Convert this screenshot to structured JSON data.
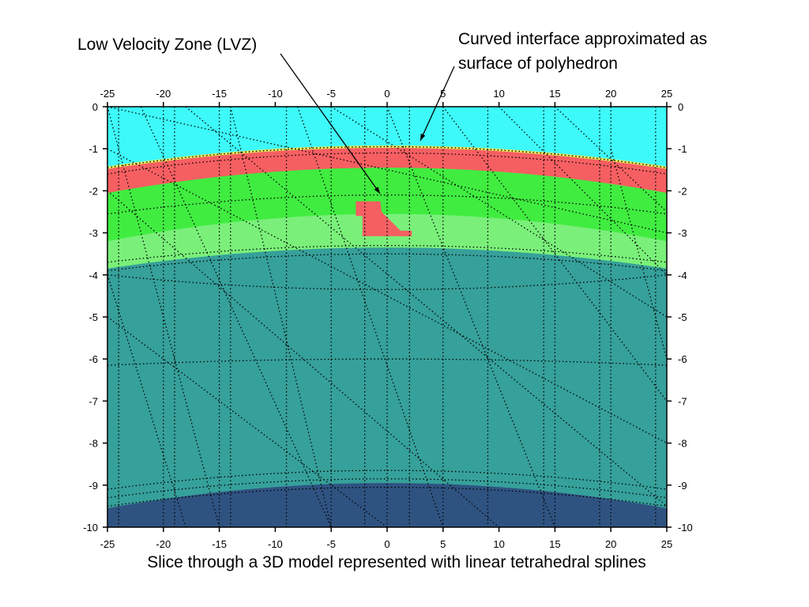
{
  "annotations": {
    "lvz": "Low Velocity Zone (LVZ)",
    "curved_line1": "Curved interface approximated as",
    "curved_line2": "surface of polyhedron"
  },
  "caption": "Slice through a 3D model represented with linear tetrahedral splines",
  "axes": {
    "x_ticks": [
      "-25",
      "-20",
      "-15",
      "-10",
      "-5",
      "0",
      "5",
      "10",
      "15",
      "20",
      "25"
    ],
    "y_ticks": [
      "0",
      "-1",
      "-2",
      "-3",
      "-4",
      "-5",
      "-6",
      "-7",
      "-8",
      "-9",
      "-10"
    ],
    "x_range": [
      -25,
      25
    ],
    "y_range": [
      -10,
      0
    ]
  },
  "colors": {
    "water": "#3df9f9",
    "red_layer": "#f65f62",
    "yellow_edge": "#e8e85a",
    "green_bright": "#40ec40",
    "green_light": "#7af07a",
    "teal": "#36a09a",
    "deep_blue": "#2f5381",
    "frame": "#000000"
  }
}
